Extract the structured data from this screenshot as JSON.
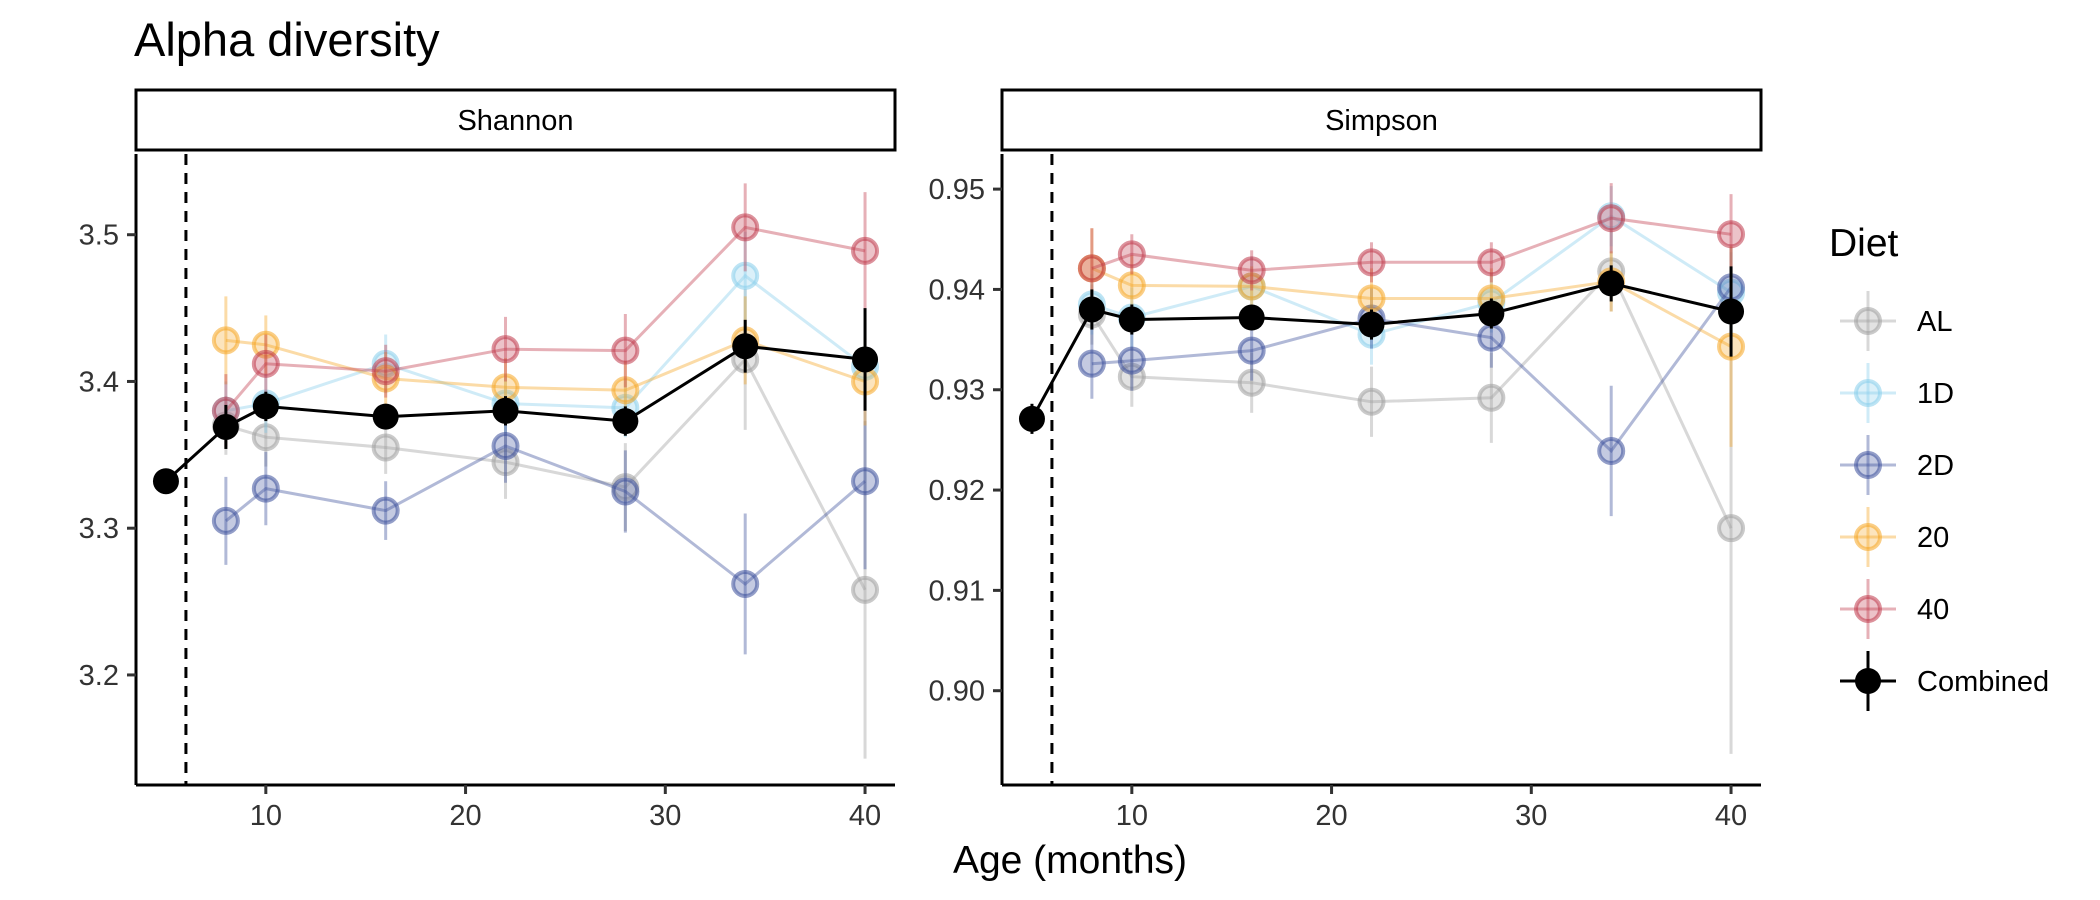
{
  "title": "Alpha diversity",
  "xlabel": "Age (months)",
  "legend": {
    "title": "Diet",
    "placement": "right",
    "items": [
      {
        "key": "AL",
        "label": "AL",
        "color": "#9e9e9e"
      },
      {
        "key": "1D",
        "label": "1D",
        "color": "#87ceeb"
      },
      {
        "key": "2D",
        "label": "2D",
        "color": "#3b4f9a"
      },
      {
        "key": "20",
        "label": "20",
        "color": "#f5a623"
      },
      {
        "key": "40",
        "label": "40",
        "color": "#c0394b"
      },
      {
        "key": "Combined",
        "label": "Combined",
        "color": "#000000"
      }
    ]
  },
  "chart_data": [
    {
      "type": "line",
      "facet": "Shannon",
      "xlim": [
        3.5,
        41.5
      ],
      "ylim": [
        3.125,
        3.555
      ],
      "xticks": [
        10,
        20,
        30,
        40
      ],
      "yticks": [
        3.2,
        3.3,
        3.4,
        3.5
      ],
      "ytick_labels": [
        "3.2",
        "3.3",
        "3.4",
        "3.5"
      ],
      "vline": 6,
      "series": [
        {
          "name": "AL",
          "x": [
            8,
            10,
            16,
            22,
            28,
            34,
            40
          ],
          "y": [
            3.37,
            3.362,
            3.355,
            3.345,
            3.328,
            3.415,
            3.258
          ],
          "err": [
            0.02,
            0.02,
            0.018,
            0.025,
            0.03,
            0.048,
            0.115
          ]
        },
        {
          "name": "1D",
          "x": [
            8,
            10,
            16,
            22,
            28,
            34,
            40
          ],
          "y": [
            3.38,
            3.385,
            3.412,
            3.385,
            3.382,
            3.472,
            3.41
          ],
          "err": [
            0.02,
            0.02,
            0.02,
            0.02,
            0.02,
            0.03,
            0.03
          ]
        },
        {
          "name": "2D",
          "x": [
            8,
            10,
            16,
            22,
            28,
            34,
            40
          ],
          "y": [
            3.305,
            3.327,
            3.312,
            3.356,
            3.325,
            3.262,
            3.332
          ],
          "err": [
            0.03,
            0.025,
            0.02,
            0.025,
            0.028,
            0.048,
            0.06
          ]
        },
        {
          "name": "20",
          "x": [
            8,
            10,
            16,
            22,
            28,
            34,
            40
          ],
          "y": [
            3.428,
            3.425,
            3.402,
            3.396,
            3.394,
            3.428,
            3.4
          ],
          "err": [
            0.03,
            0.02,
            0.018,
            0.02,
            0.02,
            0.03,
            0.03
          ]
        },
        {
          "name": "40",
          "x": [
            8,
            10,
            16,
            22,
            28,
            34,
            40
          ],
          "y": [
            3.38,
            3.412,
            3.407,
            3.422,
            3.421,
            3.505,
            3.489
          ],
          "err": [
            0.025,
            0.02,
            0.018,
            0.022,
            0.025,
            0.03,
            0.04
          ]
        },
        {
          "name": "Combined",
          "x": [
            5,
            8,
            10,
            16,
            22,
            28,
            34,
            40
          ],
          "y": [
            3.332,
            3.369,
            3.383,
            3.376,
            3.38,
            3.373,
            3.424,
            3.415
          ],
          "err": [
            0.005,
            0.015,
            0.01,
            0.008,
            0.01,
            0.01,
            0.018,
            0.035
          ]
        }
      ]
    },
    {
      "type": "line",
      "facet": "Simpson",
      "xlim": [
        3.5,
        41.5
      ],
      "ylim": [
        0.8906,
        0.9535
      ],
      "xticks": [
        10,
        20,
        30,
        40
      ],
      "yticks": [
        0.9,
        0.91,
        0.92,
        0.93,
        0.94,
        0.95
      ],
      "ytick_labels": [
        "0.90",
        "0.91",
        "0.92",
        "0.93",
        "0.94",
        "0.95"
      ],
      "vline": 6,
      "series": [
        {
          "name": "AL",
          "x": [
            8,
            10,
            16,
            22,
            28,
            34,
            40
          ],
          "y": [
            0.9375,
            0.9313,
            0.9307,
            0.9288,
            0.9292,
            0.9418,
            0.9162
          ],
          "err": [
            0.003,
            0.003,
            0.003,
            0.0035,
            0.0045,
            0.004,
            0.0225
          ]
        },
        {
          "name": "1D",
          "x": [
            8,
            10,
            16,
            22,
            28,
            34,
            40
          ],
          "y": [
            0.9385,
            0.9372,
            0.9403,
            0.9355,
            0.9387,
            0.9473,
            0.9397
          ],
          "err": [
            0.003,
            0.003,
            0.003,
            0.003,
            0.003,
            0.003,
            0.004
          ]
        },
        {
          "name": "2D",
          "x": [
            8,
            10,
            16,
            22,
            28,
            34,
            40
          ],
          "y": [
            0.9326,
            0.9329,
            0.9339,
            0.9371,
            0.9352,
            0.9239,
            0.9402
          ],
          "err": [
            0.0035,
            0.003,
            0.003,
            0.003,
            0.003,
            0.0065,
            0.004
          ]
        },
        {
          "name": "20",
          "x": [
            8,
            10,
            16,
            22,
            28,
            34,
            40
          ],
          "y": [
            0.9421,
            0.9404,
            0.9403,
            0.9391,
            0.9391,
            0.9408,
            0.9343
          ],
          "err": [
            0.004,
            0.003,
            0.002,
            0.003,
            0.003,
            0.003,
            0.01
          ]
        },
        {
          "name": "40",
          "x": [
            8,
            10,
            16,
            22,
            28,
            34,
            40
          ],
          "y": [
            0.9421,
            0.9435,
            0.9419,
            0.9427,
            0.9427,
            0.9471,
            0.9455
          ],
          "err": [
            0.004,
            0.002,
            0.002,
            0.002,
            0.002,
            0.0035,
            0.004
          ]
        },
        {
          "name": "Combined",
          "x": [
            5,
            8,
            10,
            16,
            22,
            28,
            34,
            40
          ],
          "y": [
            0.9271,
            0.938,
            0.937,
            0.9372,
            0.9365,
            0.9376,
            0.9406,
            0.9378
          ],
          "err": [
            0.0015,
            0.002,
            0.0015,
            0.0012,
            0.0015,
            0.0015,
            0.0018,
            0.0045
          ]
        }
      ]
    }
  ]
}
